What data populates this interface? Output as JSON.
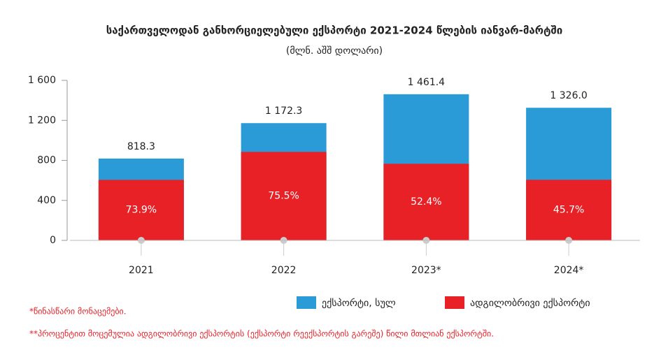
{
  "chart_data": {
    "type": "bar",
    "title": "საქართველოდან განხორციელებული ექსპორტი 2021-2024 წლების იანვარ-მარტში",
    "subtitle": "(მლნ. აშშ დოლარი)",
    "categories": [
      "2021",
      "2022",
      "2023*",
      "2024*"
    ],
    "series": [
      {
        "name": "ექსპორტი, სულ",
        "color": "#2a9bd6",
        "values": [
          818.3,
          1172.3,
          1461.4,
          1326.0
        ],
        "value_labels": [
          "818.3",
          "1 172.3",
          "1 461.4",
          "1 326.0"
        ]
      },
      {
        "name": "ადგილობრივი ექსპორტი",
        "color": "#e82127",
        "values": [
          605,
          885,
          766,
          606
        ],
        "percent_labels": [
          "73.9%",
          "75.5%",
          "52.4%",
          "45.7%"
        ]
      }
    ],
    "ylim": [
      0,
      1600
    ],
    "yticks": [
      0,
      400,
      800,
      {
        "value": 1200,
        "label": "1 200"
      },
      {
        "value": 1600,
        "label": "1 600"
      }
    ],
    "grid": false,
    "legend": "bottom-right",
    "notes": [
      "*წინასწარი მონაცემები.",
      "**პროცენტით მოცემულია ადგილობრივი ექსპორტის (ექსპორტი რეექსპორტის გარეშე) წილი მთლიან ექსპორტში."
    ]
  }
}
